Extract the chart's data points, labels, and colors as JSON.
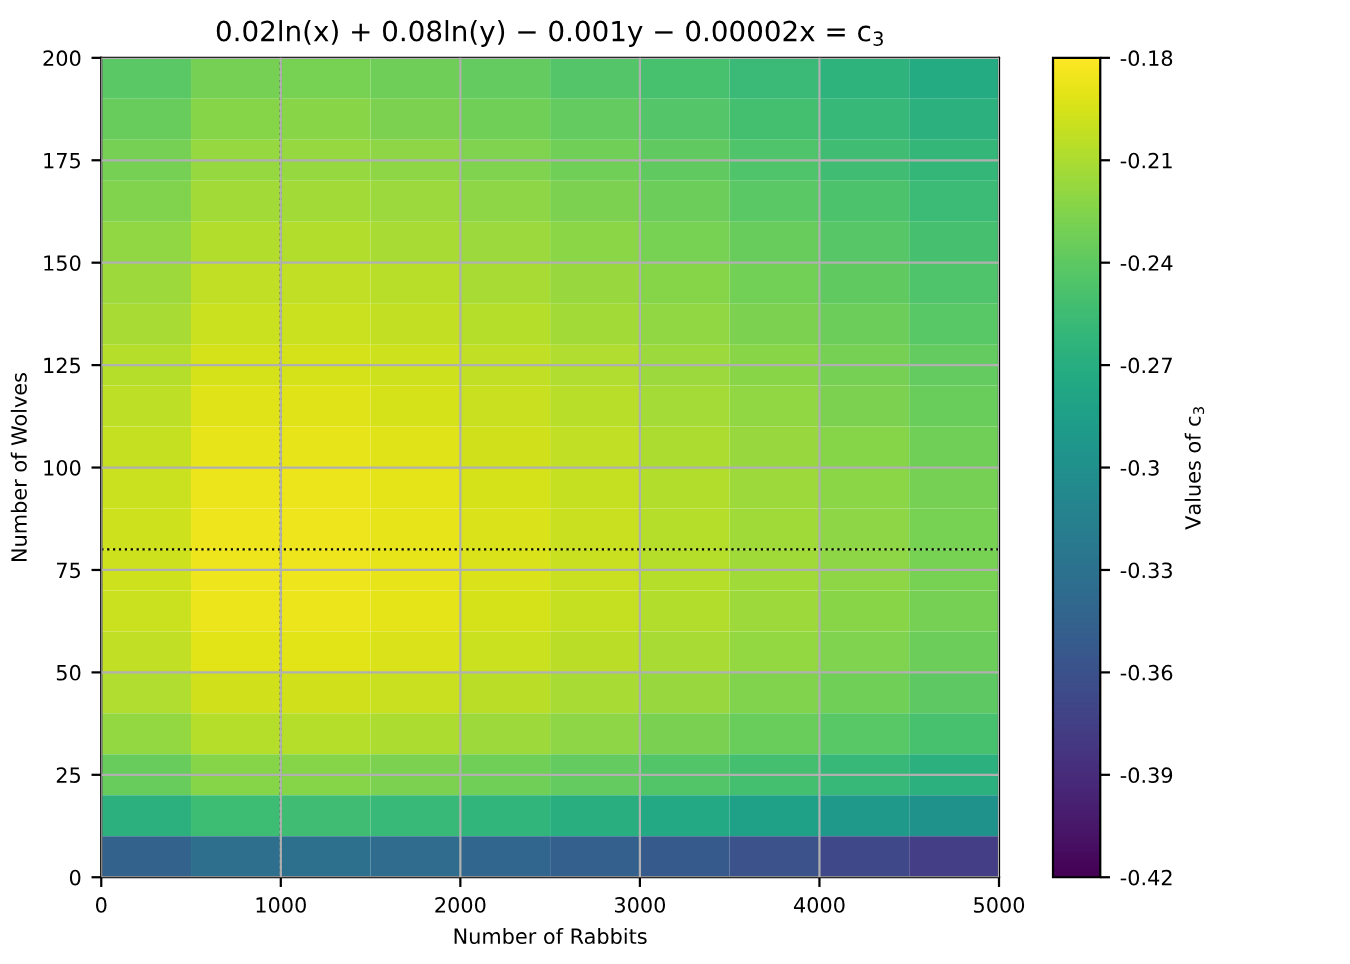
{
  "chart_data": {
    "type": "heatmap",
    "title": "0.02ln(x) + 0.08ln(y) − 0.001y − 0.00002x = c$_{3}$",
    "xlabel": "Number of Rabbits",
    "ylabel": "Number of Wolves",
    "clabel": "Values of c$_{3}$",
    "x": [
      250,
      750,
      1250,
      1750,
      2250,
      2750,
      3250,
      3750,
      4250,
      4750
    ],
    "y": [
      195,
      185,
      175,
      165,
      155,
      145,
      135,
      125,
      115,
      105,
      95,
      85,
      75,
      65,
      55,
      45,
      35,
      25,
      15,
      5
    ],
    "cells": [
      [
        -0.241,
        -0.23,
        -0.229,
        -0.233,
        -0.238,
        -0.244,
        -0.25,
        -0.257,
        -0.265,
        -0.273
      ],
      [
        -0.236,
        -0.224,
        -0.223,
        -0.227,
        -0.232,
        -0.238,
        -0.244,
        -0.252,
        -0.259,
        -0.267
      ],
      [
        -0.23,
        -0.218,
        -0.218,
        -0.221,
        -0.226,
        -0.232,
        -0.239,
        -0.246,
        -0.254,
        -0.261
      ],
      [
        -0.225,
        -0.213,
        -0.213,
        -0.216,
        -0.221,
        -0.227,
        -0.234,
        -0.241,
        -0.248,
        -0.256
      ],
      [
        -0.22,
        -0.208,
        -0.208,
        -0.211,
        -0.216,
        -0.222,
        -0.229,
        -0.236,
        -0.243,
        -0.251
      ],
      [
        -0.215,
        -0.203,
        -0.203,
        -0.206,
        -0.211,
        -0.217,
        -0.224,
        -0.231,
        -0.239,
        -0.246
      ],
      [
        -0.211,
        -0.199,
        -0.199,
        -0.202,
        -0.207,
        -0.213,
        -0.22,
        -0.227,
        -0.234,
        -0.242
      ],
      [
        -0.207,
        -0.195,
        -0.195,
        -0.198,
        -0.203,
        -0.209,
        -0.216,
        -0.223,
        -0.23,
        -0.238
      ],
      [
        -0.204,
        -0.192,
        -0.192,
        -0.195,
        -0.2,
        -0.206,
        -0.212,
        -0.22,
        -0.227,
        -0.235
      ],
      [
        -0.201,
        -0.189,
        -0.189,
        -0.192,
        -0.197,
        -0.203,
        -0.21,
        -0.217,
        -0.224,
        -0.232
      ],
      [
        -0.199,
        -0.187,
        -0.187,
        -0.19,
        -0.195,
        -0.201,
        -0.208,
        -0.215,
        -0.222,
        -0.23
      ],
      [
        -0.198,
        -0.186,
        -0.186,
        -0.189,
        -0.194,
        -0.2,
        -0.207,
        -0.214,
        -0.221,
        -0.229
      ],
      [
        -0.198,
        -0.186,
        -0.186,
        -0.189,
        -0.194,
        -0.2,
        -0.207,
        -0.214,
        -0.221,
        -0.229
      ],
      [
        -0.199,
        -0.187,
        -0.187,
        -0.19,
        -0.195,
        -0.201,
        -0.208,
        -0.215,
        -0.223,
        -0.23
      ],
      [
        -0.203,
        -0.191,
        -0.191,
        -0.194,
        -0.199,
        -0.205,
        -0.211,
        -0.219,
        -0.226,
        -0.234
      ],
      [
        -0.209,
        -0.197,
        -0.197,
        -0.2,
        -0.205,
        -0.211,
        -0.217,
        -0.225,
        -0.232,
        -0.24
      ],
      [
        -0.219,
        -0.207,
        -0.207,
        -0.21,
        -0.215,
        -0.221,
        -0.228,
        -0.235,
        -0.242,
        -0.25
      ],
      [
        -0.236,
        -0.224,
        -0.224,
        -0.227,
        -0.232,
        -0.238,
        -0.245,
        -0.252,
        -0.259,
        -0.267
      ],
      [
        -0.267,
        -0.255,
        -0.254,
        -0.258,
        -0.263,
        -0.269,
        -0.275,
        -0.283,
        -0.29,
        -0.298
      ],
      [
        -0.345,
        -0.333,
        -0.332,
        -0.336,
        -0.341,
        -0.347,
        -0.353,
        -0.36,
        -0.368,
        -0.376
      ]
    ],
    "clim": [
      -0.42,
      -0.18
    ],
    "cticks": [
      -0.42,
      -0.39,
      -0.36,
      -0.33,
      -0.3,
      -0.27,
      -0.24,
      -0.21,
      -0.18
    ],
    "xlim": [
      0,
      5000
    ],
    "xticks": [
      0,
      1000,
      2000,
      3000,
      4000,
      5000
    ],
    "ylim": [
      0,
      200
    ],
    "yticks": [
      0,
      25,
      50,
      75,
      100,
      125,
      150,
      175,
      200
    ],
    "grid": true,
    "ref_lines": [
      {
        "axis": "x",
        "value": 1000,
        "color": "#000000",
        "line_style": "dotted"
      },
      {
        "axis": "y",
        "value": 80,
        "color": "#000000",
        "line_style": "dotted"
      }
    ]
  }
}
